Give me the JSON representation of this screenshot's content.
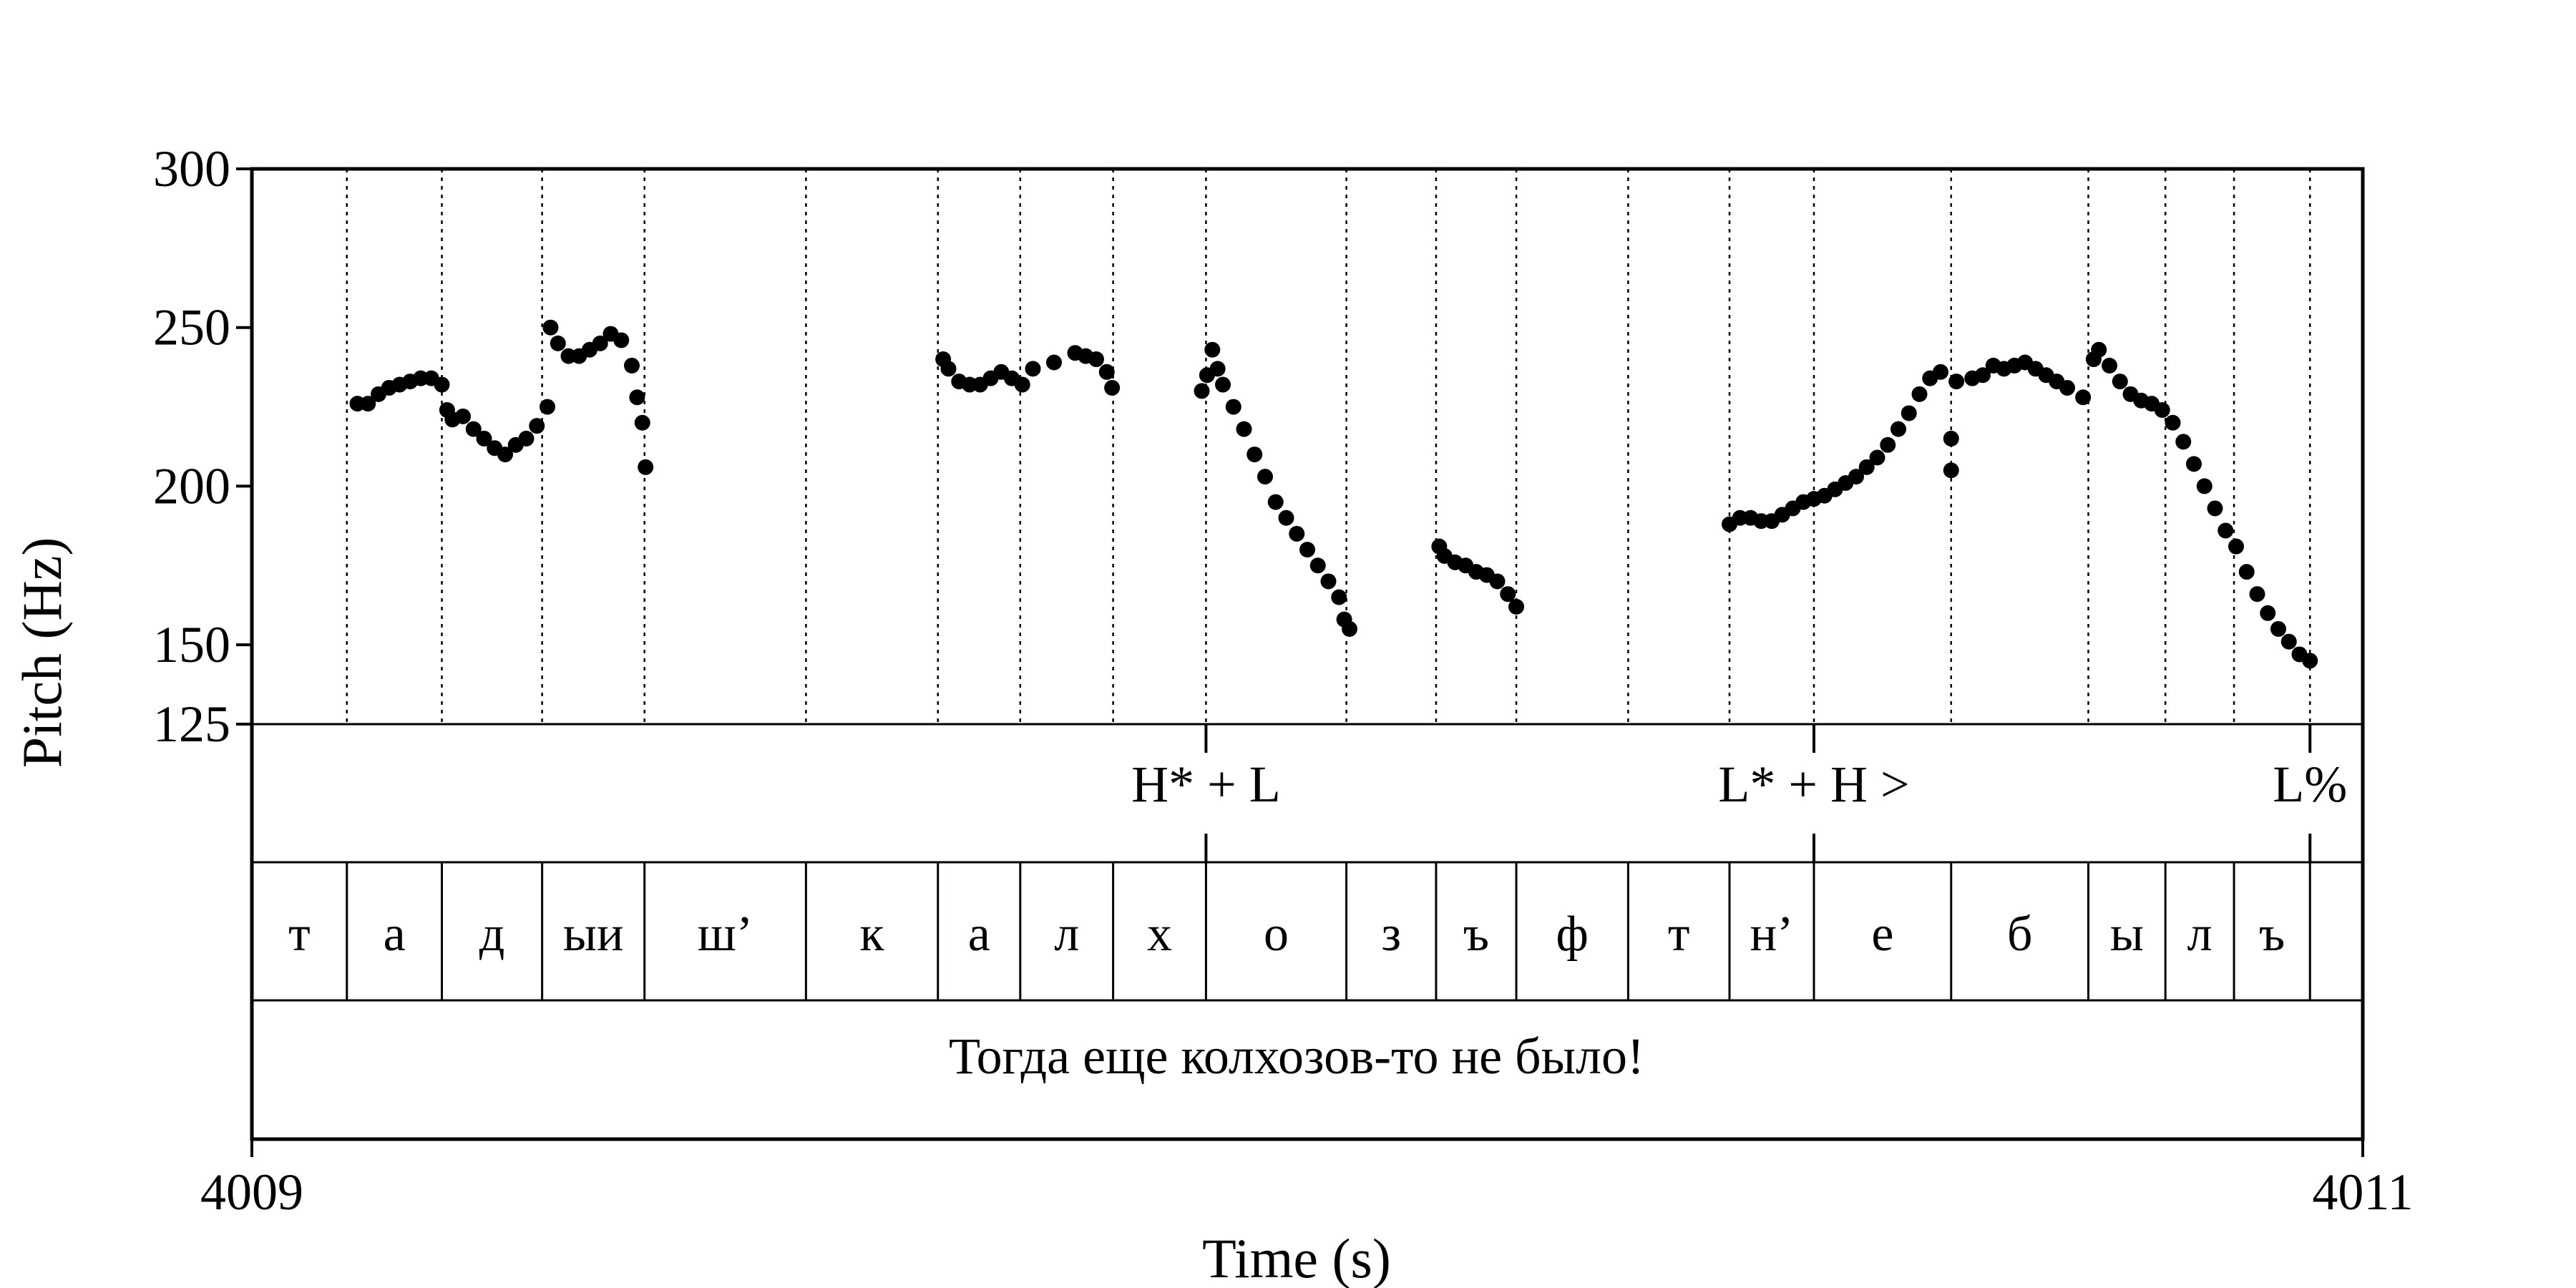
{
  "chart_data": {
    "type": "scatter",
    "xlabel": "Time (s)",
    "ylabel": "Pitch (Hz)",
    "xlim": [
      4009,
      4011
    ],
    "ylim": [
      125,
      300
    ],
    "x_tick_labels": [
      "4009",
      "4011"
    ],
    "y_ticks": [
      {
        "value": 125,
        "label": "125"
      },
      {
        "value": 150,
        "label": "150"
      },
      {
        "value": 200,
        "label": "200"
      },
      {
        "value": 250,
        "label": "250"
      },
      {
        "value": 300,
        "label": "300"
      }
    ],
    "grid": false,
    "segment_boundaries": [
      4009.09,
      4009.18,
      4009.275,
      4009.372,
      4009.525,
      4009.65,
      4009.728,
      4009.816,
      4009.904,
      4010.037,
      4010.122,
      4010.198,
      4010.304,
      4010.4,
      4010.48,
      4010.61,
      4010.74,
      4010.813,
      4010.878,
      4010.95,
      4011.0
    ],
    "tones": [
      {
        "label": "H* + L",
        "time": 4009.904
      },
      {
        "label": "L* + H >",
        "time": 4010.48
      },
      {
        "label": "L%",
        "time": 4010.95
      }
    ],
    "segments": [
      {
        "label": "т",
        "start": 4009.0,
        "end": 4009.09
      },
      {
        "label": "а",
        "start": 4009.09,
        "end": 4009.18
      },
      {
        "label": "д",
        "start": 4009.18,
        "end": 4009.275
      },
      {
        "label": "ыи",
        "start": 4009.275,
        "end": 4009.372
      },
      {
        "label": "ш’",
        "start": 4009.372,
        "end": 4009.525
      },
      {
        "label": "к",
        "start": 4009.525,
        "end": 4009.65
      },
      {
        "label": "а",
        "start": 4009.65,
        "end": 4009.728
      },
      {
        "label": "л",
        "start": 4009.728,
        "end": 4009.816
      },
      {
        "label": "х",
        "start": 4009.816,
        "end": 4009.904
      },
      {
        "label": "о",
        "start": 4009.904,
        "end": 4010.037
      },
      {
        "label": "з",
        "start": 4010.037,
        "end": 4010.122
      },
      {
        "label": "ъ",
        "start": 4010.122,
        "end": 4010.198
      },
      {
        "label": "ф",
        "start": 4010.198,
        "end": 4010.304
      },
      {
        "label": "т",
        "start": 4010.304,
        "end": 4010.4
      },
      {
        "label": "н’",
        "start": 4010.4,
        "end": 4010.48
      },
      {
        "label": "е",
        "start": 4010.48,
        "end": 4010.61
      },
      {
        "label": "б",
        "start": 4010.61,
        "end": 4010.74
      },
      {
        "label": "ы",
        "start": 4010.74,
        "end": 4010.813
      },
      {
        "label": "л",
        "start": 4010.813,
        "end": 4010.878
      },
      {
        "label": "ъ",
        "start": 4010.878,
        "end": 4010.95
      }
    ],
    "sentence": "Тогда еще колхозов-то не было!",
    "series": [
      {
        "points": [
          [
            4009.1,
            226
          ],
          [
            4009.11,
            226
          ],
          [
            4009.12,
            229
          ],
          [
            4009.13,
            231
          ],
          [
            4009.14,
            232
          ],
          [
            4009.15,
            233
          ],
          [
            4009.16,
            234
          ],
          [
            4009.17,
            234
          ],
          [
            4009.18,
            232
          ],
          [
            4009.185,
            224
          ],
          [
            4009.19,
            221
          ],
          [
            4009.2,
            222
          ],
          [
            4009.21,
            218
          ],
          [
            4009.22,
            215
          ],
          [
            4009.23,
            212
          ],
          [
            4009.24,
            210
          ],
          [
            4009.25,
            213
          ],
          [
            4009.26,
            215
          ],
          [
            4009.27,
            219
          ],
          [
            4009.28,
            225
          ],
          [
            4009.283,
            250
          ],
          [
            4009.29,
            245
          ],
          [
            4009.3,
            241
          ],
          [
            4009.31,
            241
          ],
          [
            4009.32,
            243
          ],
          [
            4009.33,
            245
          ],
          [
            4009.34,
            248
          ],
          [
            4009.35,
            246
          ],
          [
            4009.36,
            238
          ],
          [
            4009.365,
            228
          ],
          [
            4009.37,
            220
          ],
          [
            4009.373,
            206
          ],
          [
            4009.655,
            240
          ],
          [
            4009.66,
            237
          ],
          [
            4009.67,
            233
          ],
          [
            4009.68,
            232
          ],
          [
            4009.69,
            232
          ],
          [
            4009.7,
            234
          ],
          [
            4009.71,
            236
          ],
          [
            4009.72,
            234
          ],
          [
            4009.73,
            232
          ],
          [
            4009.74,
            237
          ],
          [
            4009.76,
            239
          ],
          [
            4009.78,
            242
          ],
          [
            4009.79,
            241
          ],
          [
            4009.8,
            240
          ],
          [
            4009.81,
            236
          ],
          [
            4009.815,
            231
          ],
          [
            4009.9,
            230
          ],
          [
            4009.905,
            235
          ],
          [
            4009.91,
            243
          ],
          [
            4009.915,
            237
          ],
          [
            4009.92,
            232
          ],
          [
            4009.93,
            225
          ],
          [
            4009.94,
            218
          ],
          [
            4009.95,
            210
          ],
          [
            4009.96,
            203
          ],
          [
            4009.97,
            195
          ],
          [
            4009.98,
            190
          ],
          [
            4009.99,
            185
          ],
          [
            4010.0,
            180
          ],
          [
            4010.01,
            175
          ],
          [
            4010.02,
            170
          ],
          [
            4010.03,
            165
          ],
          [
            4010.035,
            158
          ],
          [
            4010.04,
            155
          ],
          [
            4010.125,
            181
          ],
          [
            4010.13,
            178
          ],
          [
            4010.14,
            176
          ],
          [
            4010.15,
            175
          ],
          [
            4010.16,
            173
          ],
          [
            4010.17,
            172
          ],
          [
            4010.18,
            170
          ],
          [
            4010.19,
            166
          ],
          [
            4010.198,
            162
          ],
          [
            4010.4,
            188
          ],
          [
            4010.41,
            190
          ],
          [
            4010.42,
            190
          ],
          [
            4010.43,
            189
          ],
          [
            4010.44,
            189
          ],
          [
            4010.45,
            191
          ],
          [
            4010.46,
            193
          ],
          [
            4010.47,
            195
          ],
          [
            4010.48,
            196
          ],
          [
            4010.49,
            197
          ],
          [
            4010.5,
            199
          ],
          [
            4010.51,
            201
          ],
          [
            4010.52,
            203
          ],
          [
            4010.53,
            206
          ],
          [
            4010.54,
            209
          ],
          [
            4010.55,
            213
          ],
          [
            4010.56,
            218
          ],
          [
            4010.57,
            223
          ],
          [
            4010.58,
            229
          ],
          [
            4010.59,
            234
          ],
          [
            4010.6,
            236
          ],
          [
            4010.61,
            215
          ],
          [
            4010.61,
            205
          ],
          [
            4010.615,
            233
          ],
          [
            4010.63,
            234
          ],
          [
            4010.64,
            235
          ],
          [
            4010.65,
            238
          ],
          [
            4010.66,
            237
          ],
          [
            4010.67,
            238
          ],
          [
            4010.68,
            239
          ],
          [
            4010.69,
            237
          ],
          [
            4010.7,
            235
          ],
          [
            4010.71,
            233
          ],
          [
            4010.72,
            231
          ],
          [
            4010.735,
            228
          ],
          [
            4010.745,
            240
          ],
          [
            4010.75,
            243
          ],
          [
            4010.76,
            238
          ],
          [
            4010.77,
            233
          ],
          [
            4010.78,
            229
          ],
          [
            4010.79,
            227
          ],
          [
            4010.8,
            226
          ],
          [
            4010.81,
            224
          ],
          [
            4010.82,
            220
          ],
          [
            4010.83,
            214
          ],
          [
            4010.84,
            207
          ],
          [
            4010.85,
            200
          ],
          [
            4010.86,
            193
          ],
          [
            4010.87,
            186
          ],
          [
            4010.88,
            181
          ],
          [
            4010.89,
            173
          ],
          [
            4010.9,
            166
          ],
          [
            4010.91,
            160
          ],
          [
            4010.92,
            155
          ],
          [
            4010.93,
            151
          ],
          [
            4010.94,
            147
          ],
          [
            4010.95,
            145
          ]
        ]
      }
    ]
  }
}
